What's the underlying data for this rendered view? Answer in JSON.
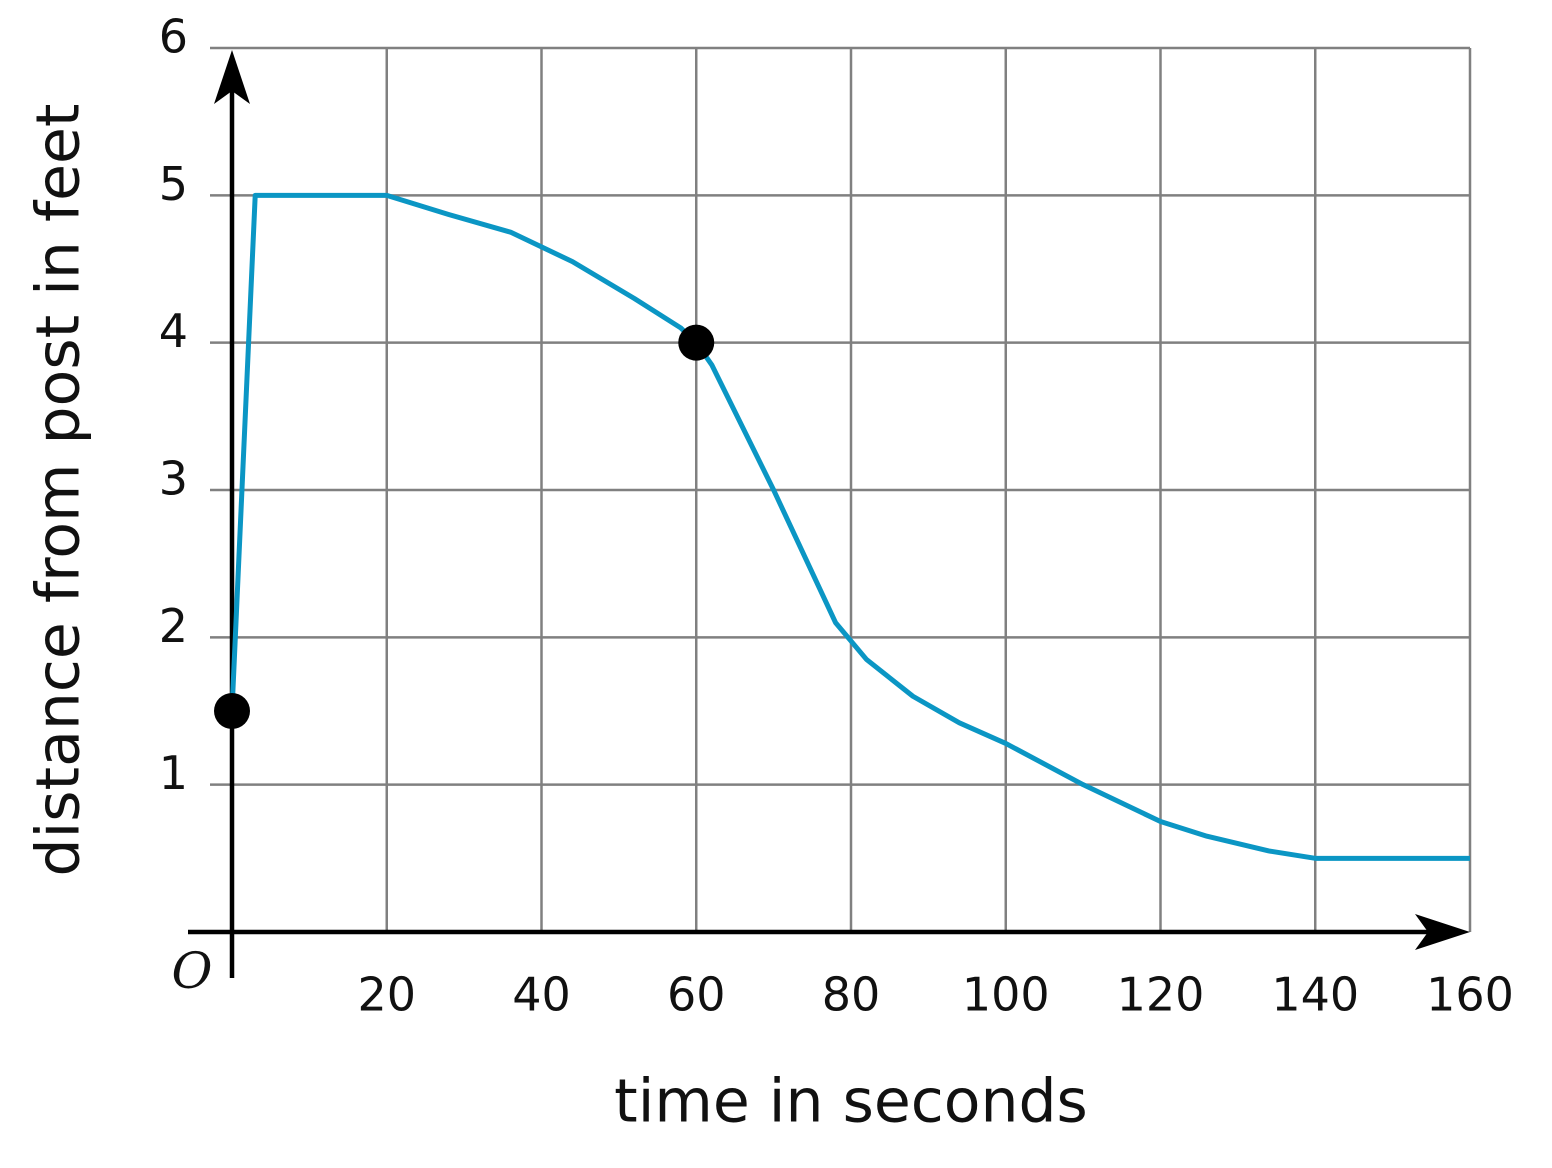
{
  "chart_data": {
    "type": "line",
    "x_label": "time in seconds",
    "y_label": "distance from post in feet",
    "origin_label": "O",
    "x": [
      0,
      3,
      20,
      28,
      36,
      44,
      52,
      58,
      60,
      62,
      70,
      78,
      82,
      88,
      94,
      100,
      110,
      120,
      126,
      134,
      140,
      144,
      160
    ],
    "series": [
      {
        "color": "#0b96c4",
        "values": [
          1.5,
          5,
          5,
          4.87,
          4.75,
          4.55,
          4.3,
          4.1,
          4,
          3.85,
          3.0,
          2.1,
          1.85,
          1.6,
          1.42,
          1.28,
          1.0,
          0.75,
          0.65,
          0.55,
          0.5,
          0.5,
          0.5
        ]
      }
    ],
    "points": {
      "color": "#000000",
      "x": [
        0,
        60
      ],
      "values": [
        1.5,
        4
      ]
    },
    "xlim": [
      0,
      160
    ],
    "ylim": [
      0,
      6
    ],
    "xticks": [
      20,
      40,
      60,
      80,
      100,
      120,
      140,
      160
    ],
    "yticks": [
      1,
      2,
      3,
      4,
      5,
      6
    ],
    "grid": true
  }
}
